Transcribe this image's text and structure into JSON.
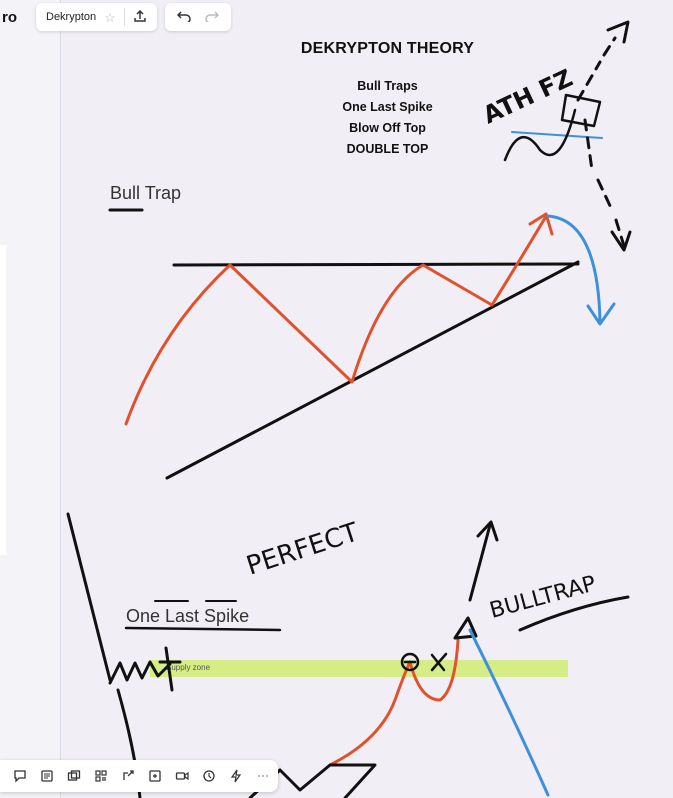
{
  "app": {
    "brand": "ro",
    "board_name": "Dekrypton"
  },
  "toolbar": {
    "star_icon": "star-icon",
    "export_icon": "upload-icon",
    "undo_icon": "undo-icon",
    "redo_icon": "redo-icon"
  },
  "board": {
    "title": "DEKRYPTON THEORY",
    "topics": [
      "Bull Traps",
      "One Last Spike",
      "Blow Off Top",
      "DOUBLE TOP"
    ],
    "bull_trap_label": "Bull Trap",
    "one_last_spike_label": "One Last Spike",
    "supply_zone_label": "Supply zone",
    "handwritten": {
      "ath_fz": "ATH FZ",
      "perfect": "PERFECT",
      "bulltrap": "BULLTRAP"
    }
  },
  "bottom_toolbar": {
    "tools": [
      "comment-icon",
      "notes-icon",
      "frames-icon",
      "templates-icon",
      "share-icon",
      "embed-icon",
      "video-icon",
      "timer-icon",
      "power-icon",
      "more-icon"
    ]
  },
  "colors": {
    "red_line": "#e2512d",
    "blue_line": "#3f90dc",
    "ink": "#111111",
    "zone": "#d6ec84"
  }
}
